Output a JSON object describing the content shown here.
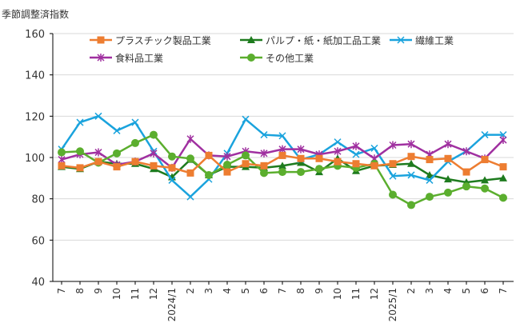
{
  "chart_data": {
    "type": "line",
    "ylabel": "季節調整済指数",
    "ylim": [
      40,
      160
    ],
    "yticks": [
      40,
      60,
      80,
      100,
      120,
      140,
      160
    ],
    "grid": true,
    "legend_placement": "top",
    "categories": [
      "7",
      "8",
      "9",
      "10",
      "11",
      "12",
      "2024/1",
      "2",
      "3",
      "4",
      "5",
      "6",
      "7",
      "8",
      "9",
      "10",
      "11",
      "12",
      "2025/1",
      "2",
      "3",
      "4",
      "5",
      "6",
      "7"
    ],
    "series": [
      {
        "name": "パルプ・紙・紙加工品工業",
        "color": "#1E7B1E",
        "marker": "triangle",
        "values": [
          95.5,
          94.5,
          98,
          97,
          97,
          94.5,
          90.5,
          99,
          91.5,
          95.5,
          95.5,
          95,
          96,
          97.5,
          93,
          99.5,
          93.5,
          96,
          96.5,
          97,
          91.5,
          89.5,
          88,
          89,
          90
        ]
      },
      {
        "name": "繊維工業",
        "color": "#1AA3DD",
        "marker": "x",
        "values": [
          104,
          117,
          120,
          113,
          117,
          103,
          89,
          81,
          89.5,
          102,
          118.5,
          111,
          110.5,
          99,
          101.5,
          107.5,
          101.5,
          104.5,
          91,
          91.5,
          89,
          98,
          103,
          111,
          111
        ]
      },
      {
        "name": "食料品工業",
        "color": "#A030A0",
        "marker": "star",
        "values": [
          99,
          101.5,
          102.5,
          96.5,
          98,
          102,
          95,
          109,
          101,
          100.5,
          103,
          102,
          104,
          104,
          101.5,
          103,
          105.5,
          99.5,
          106,
          106.5,
          101.5,
          106.5,
          103,
          99.5,
          108.5
        ]
      },
      {
        "name": "その他工業",
        "color": "#5BAE2E",
        "marker": "circle",
        "values": [
          102.5,
          103,
          97.5,
          102,
          107,
          111,
          100.5,
          99.5,
          91.5,
          96.5,
          101,
          92.5,
          93,
          93,
          94.5,
          96,
          95,
          97,
          82,
          77,
          81,
          83,
          86,
          85,
          80.5
        ]
      },
      {
        "name": "プラスチック製品工業",
        "color": "#ED7D31",
        "marker": "square",
        "values": [
          96,
          95,
          98,
          95.5,
          98,
          96,
          95,
          92.5,
          101,
          93,
          97,
          96,
          101,
          99.5,
          99.5,
          98,
          97,
          96,
          97,
          100.5,
          99,
          99.5,
          93,
          99,
          95.5
        ]
      }
    ],
    "legend_order": [
      4,
      0,
      1,
      2,
      3
    ]
  }
}
